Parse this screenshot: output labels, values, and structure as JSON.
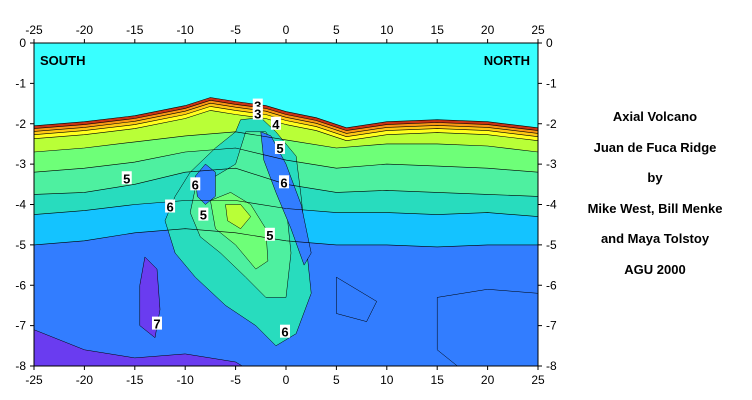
{
  "chart_data": {
    "type": "contour",
    "title": "",
    "xlabel": "",
    "ylabel": "",
    "xlim": [
      -25,
      25
    ],
    "ylim": [
      -8,
      0
    ],
    "x_ticks": [
      -25,
      -20,
      -15,
      -10,
      -5,
      0,
      5,
      10,
      15,
      20,
      25
    ],
    "y_ticks": [
      0,
      -1,
      -2,
      -3,
      -4,
      -5,
      -6,
      -7,
      -8
    ],
    "region_labels": {
      "left": "SOUTH",
      "right": "NORTH"
    },
    "contour_labels": [
      {
        "text": "3",
        "x": -2.8,
        "y": -1.55
      },
      {
        "text": "3",
        "x": -2.8,
        "y": -1.75
      },
      {
        "text": "4",
        "x": -1.0,
        "y": -2.0
      },
      {
        "text": "5",
        "x": -0.6,
        "y": -2.6
      },
      {
        "text": "5",
        "x": -15.8,
        "y": -3.35
      },
      {
        "text": "6",
        "x": -9.0,
        "y": -3.5
      },
      {
        "text": "6",
        "x": -0.2,
        "y": -3.45
      },
      {
        "text": "6",
        "x": -11.5,
        "y": -4.05
      },
      {
        "text": "5",
        "x": -8.2,
        "y": -4.25
      },
      {
        "text": "5",
        "x": -1.6,
        "y": -4.75
      },
      {
        "text": "7",
        "x": -12.8,
        "y": -6.95
      },
      {
        "text": "6",
        "x": -0.1,
        "y": -7.15
      }
    ],
    "seafloor_profile": [
      [
        -25,
        -2.05
      ],
      [
        -20,
        -1.95
      ],
      [
        -15,
        -1.8
      ],
      [
        -10,
        -1.55
      ],
      [
        -7.5,
        -1.35
      ],
      [
        -5,
        -1.45
      ],
      [
        -2,
        -1.55
      ],
      [
        0,
        -1.7
      ],
      [
        3,
        -1.85
      ],
      [
        6,
        -2.1
      ],
      [
        10,
        -1.95
      ],
      [
        15,
        -1.9
      ],
      [
        20,
        -1.95
      ],
      [
        25,
        -2.1
      ]
    ],
    "colors": {
      "water": "#39ffff",
      "surface_red": "#c83214",
      "orange": "#fa9614",
      "yellow_orange": "#ffc814",
      "yellow": "#ffff1e",
      "yellow_green": "#b9ff37",
      "green": "#6eff78",
      "teal_green": "#4ef0a0",
      "aqua": "#28dcbe",
      "sky_blue": "#14c3ff",
      "blue": "#327dff",
      "violet": "#6a3cf0"
    }
  },
  "caption_lines": [
    "Axial Volcano",
    "Juan de Fuca Ridge",
    "by",
    "Mike West, Bill Menke",
    "and Maya Tolstoy",
    "AGU 2000"
  ]
}
